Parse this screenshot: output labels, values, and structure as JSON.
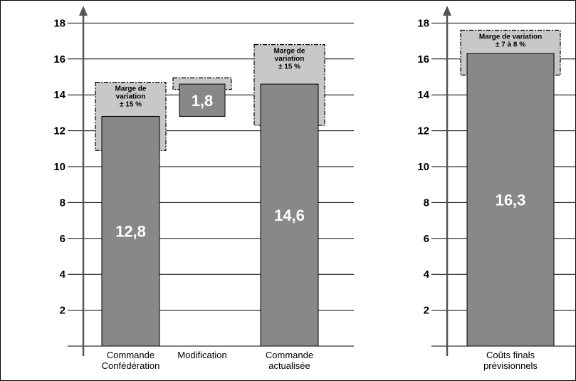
{
  "chart_data": [
    {
      "type": "bar",
      "variant": "waterfall",
      "categories": [
        "Commande Confédération",
        "Modification",
        "Commande actualisée"
      ],
      "category_lines": [
        [
          "Commande",
          "Confédération"
        ],
        [
          "Modification"
        ],
        [
          "Commande",
          "actualisée"
        ]
      ],
      "bars": [
        {
          "base": 0,
          "value": 12.8,
          "label": "12,8",
          "margin": {
            "low": 10.9,
            "high": 14.7,
            "lines": [
              "Marge de",
              "variation",
              "± 15 %"
            ]
          }
        },
        {
          "base": 12.8,
          "value": 1.8,
          "label": "1,8",
          "margin": {
            "low": 14.3,
            "high": 14.95,
            "lines": []
          }
        },
        {
          "base": 0,
          "value": 14.6,
          "label": "14,6",
          "margin": {
            "low": 12.3,
            "high": 16.8,
            "lines": [
              "Marge de",
              "variation",
              "± 15 %"
            ]
          }
        }
      ],
      "yticks": [
        2,
        4,
        6,
        8,
        10,
        12,
        14,
        16,
        18
      ],
      "ylim": [
        0,
        18.8
      ],
      "grid": true,
      "colors": {
        "bar": "#888888",
        "margin": "#c8c8c8"
      }
    },
    {
      "type": "bar",
      "categories": [
        "Coûts finals prévisionnels"
      ],
      "category_lines": [
        [
          "Coûts finals",
          "prévisionnels"
        ]
      ],
      "bars": [
        {
          "base": 0,
          "value": 16.3,
          "label": "16,3",
          "margin": {
            "low": 15.1,
            "high": 17.6,
            "lines": [
              "Marge de variation",
              "± 7 à 8 %"
            ]
          }
        }
      ],
      "yticks": [
        2,
        4,
        6,
        8,
        10,
        12,
        14,
        16,
        18
      ],
      "ylim": [
        0,
        18.8
      ],
      "grid": true,
      "colors": {
        "bar": "#888888",
        "margin": "#c8c8c8"
      }
    }
  ]
}
